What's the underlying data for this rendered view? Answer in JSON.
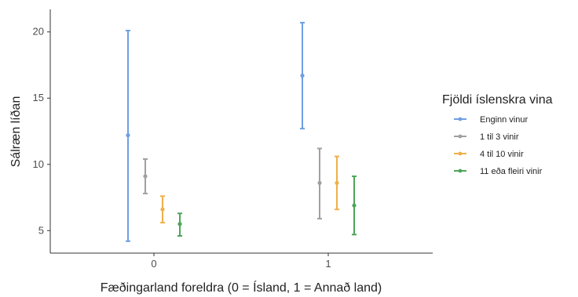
{
  "chart_data": {
    "type": "errorbar",
    "xlabel": "Fæðingarland foreldra (0 = Ísland, 1 = Annað land)",
    "ylabel": "Sálræn líðan",
    "categories": [
      "0",
      "1"
    ],
    "ylim": [
      3.3,
      21.7
    ],
    "yticks": [
      "5",
      "10",
      "15",
      "20"
    ],
    "grid": false,
    "legend": {
      "title": "Fjöldi íslenskra vina",
      "placement": "right"
    },
    "series": [
      {
        "name": "Enginn vinur",
        "color": "#6f9fe3",
        "points": [
          {
            "x": "0",
            "y": 12.2,
            "lower": 4.2,
            "upper": 20.1
          },
          {
            "x": "1",
            "y": 16.7,
            "lower": 12.7,
            "upper": 20.7
          }
        ]
      },
      {
        "name": "1 til 3 vinir",
        "color": "#a0a0a0",
        "points": [
          {
            "x": "0",
            "y": 9.1,
            "lower": 7.8,
            "upper": 10.4
          },
          {
            "x": "1",
            "y": 8.6,
            "lower": 5.9,
            "upper": 11.2
          }
        ]
      },
      {
        "name": "4 til 10 vinir",
        "color": "#eeb04a",
        "points": [
          {
            "x": "0",
            "y": 6.6,
            "lower": 5.6,
            "upper": 7.6
          },
          {
            "x": "1",
            "y": 8.6,
            "lower": 6.6,
            "upper": 10.6
          }
        ]
      },
      {
        "name": "11 eða fleiri vinir",
        "color": "#4ea55a",
        "points": [
          {
            "x": "0",
            "y": 5.5,
            "lower": 4.6,
            "upper": 6.3
          },
          {
            "x": "1",
            "y": 6.9,
            "lower": 4.7,
            "upper": 9.1
          }
        ]
      }
    ]
  }
}
